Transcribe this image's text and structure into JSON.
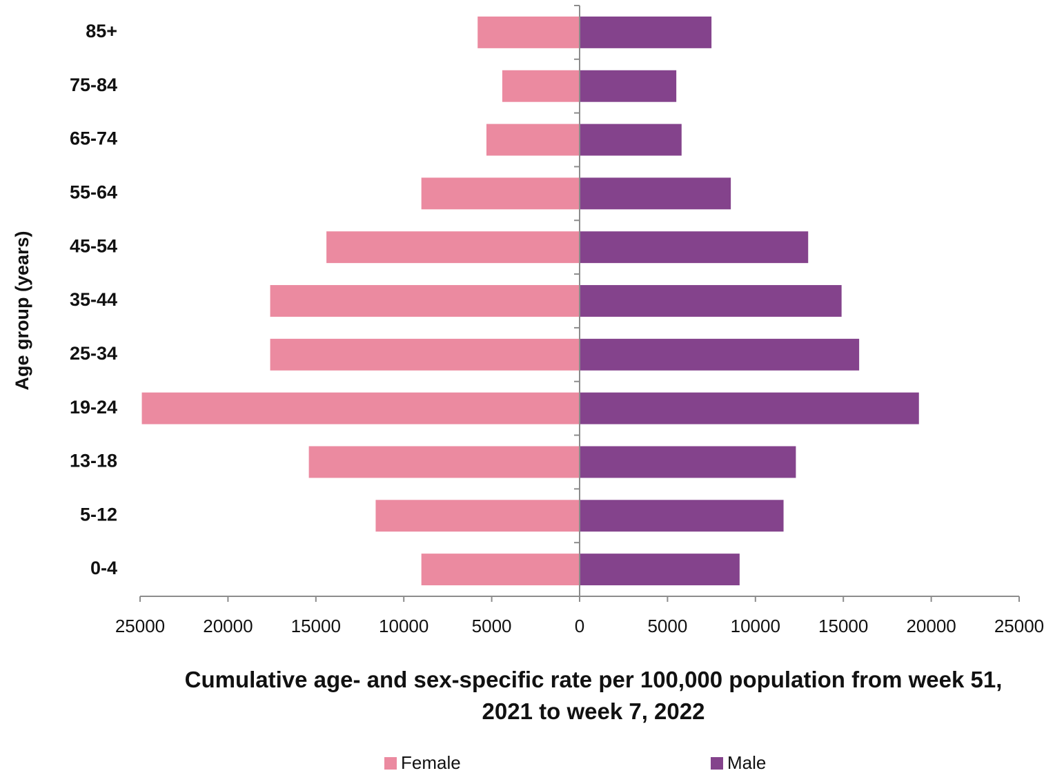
{
  "chart_data": {
    "type": "pyramid",
    "x_label": "Cumulative age- and sex-specific rate per 100,000 population from week 51, 2021 to week 7, 2022",
    "y_label": "Age group (years)",
    "categories": [
      "85+",
      "75-84",
      "65-74",
      "55-64",
      "45-54",
      "35-44",
      "25-34",
      "19-24",
      "13-18",
      "5-12",
      "0-4"
    ],
    "series": [
      {
        "name": "Female",
        "color": "#eb8aa0",
        "values": [
          -5800,
          -4400,
          -5300,
          -9000,
          -14400,
          -17600,
          -17600,
          -24900,
          -15400,
          -11600,
          -9000
        ]
      },
      {
        "name": "Male",
        "color": "#84438c",
        "values": [
          7500,
          5500,
          5800,
          8600,
          13000,
          14900,
          15900,
          19300,
          12300,
          11600,
          9100
        ]
      }
    ],
    "xlim": [
      -25000,
      25000
    ],
    "xticks": [
      {
        "value": -25000,
        "label": "25000"
      },
      {
        "value": -20000,
        "label": "20000"
      },
      {
        "value": -15000,
        "label": "15000"
      },
      {
        "value": -10000,
        "label": "10000"
      },
      {
        "value": -5000,
        "label": "5000"
      },
      0,
      5000,
      10000,
      15000,
      20000,
      25000
    ],
    "legend": "bottom"
  }
}
